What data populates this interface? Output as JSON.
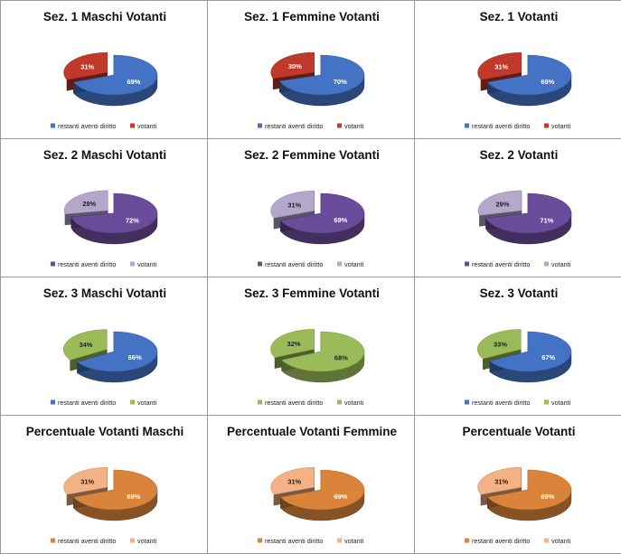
{
  "chart_data": [
    {
      "type": "pie",
      "title": "Sez. 1 Maschi Votanti",
      "categories": [
        "restanti aventi diritto",
        "votanti"
      ],
      "values": [
        69,
        31
      ],
      "labels": [
        "69%",
        "31%"
      ],
      "colors": [
        "#4472c4",
        "#c0392b"
      ],
      "legend": "bottom"
    },
    {
      "type": "pie",
      "title": "Sez. 1  Femmine Votanti",
      "categories": [
        "restanti aventi diritto",
        "votanti"
      ],
      "values": [
        70,
        30
      ],
      "labels": [
        "70%",
        "30%"
      ],
      "colors": [
        "#4472c4",
        "#c0392b"
      ],
      "legend": "bottom"
    },
    {
      "type": "pie",
      "title": "Sez. 1  Votanti",
      "categories": [
        "restanti aventi diritto",
        "votanti"
      ],
      "values": [
        69,
        31
      ],
      "labels": [
        "69%",
        "31%"
      ],
      "colors": [
        "#4472c4",
        "#c0392b"
      ],
      "legend": "bottom"
    },
    {
      "type": "pie",
      "title": "Sez. 2  Maschi Votanti",
      "categories": [
        "restanti aventi diritto",
        "votanti"
      ],
      "values": [
        72,
        28
      ],
      "labels": [
        "72%",
        "28%"
      ],
      "colors": [
        "#6b4c9a",
        "#b3a7cc"
      ],
      "legend": "bottom"
    },
    {
      "type": "pie",
      "title": "Sez. 2 Femmine Votanti",
      "categories": [
        "restanti aventi diritto",
        "votanti"
      ],
      "values": [
        69,
        31
      ],
      "labels": [
        "69%",
        "31%"
      ],
      "colors": [
        "#6b4c9a",
        "#b3a7cc"
      ],
      "legend": "bottom"
    },
    {
      "type": "pie",
      "title": "Sez. 2  Votanti",
      "categories": [
        "restanti aventi diritto",
        "votanti"
      ],
      "values": [
        71,
        29
      ],
      "labels": [
        "71%",
        "29%"
      ],
      "colors": [
        "#6b4c9a",
        "#b3a7cc"
      ],
      "legend": "bottom"
    },
    {
      "type": "pie",
      "title": "Sez. 3 Maschi Votanti",
      "categories": [
        "restanti aventi diritto",
        "votanti"
      ],
      "values": [
        66,
        34
      ],
      "labels": [
        "66%",
        "34%"
      ],
      "colors": [
        "#4472c4",
        "#9bbb59"
      ],
      "legend": "bottom"
    },
    {
      "type": "pie",
      "title": "Sez. 3  Femmine Votanti",
      "categories": [
        "restanti aventi diritto",
        "votanti"
      ],
      "values": [
        68,
        32
      ],
      "labels": [
        "68%",
        "32%"
      ],
      "colors": [
        "#9bbb59",
        "#9bbb59"
      ],
      "legend": "bottom"
    },
    {
      "type": "pie",
      "title": "Sez. 3  Votanti",
      "categories": [
        "restanti aventi diritto",
        "votanti"
      ],
      "values": [
        67,
        33
      ],
      "labels": [
        "67%",
        "33%"
      ],
      "colors": [
        "#4472c4",
        "#9bbb59"
      ],
      "legend": "bottom"
    },
    {
      "type": "pie",
      "title": "Percentuale  Votanti Maschi",
      "categories": [
        "restanti aventi diritto",
        "votanti"
      ],
      "values": [
        69,
        31
      ],
      "labels": [
        "69%",
        "31%"
      ],
      "colors": [
        "#d9843a",
        "#f4b183"
      ],
      "legend": "bottom"
    },
    {
      "type": "pie",
      "title": "Percentuale Votanti Femmine",
      "categories": [
        "restanti aventi diritto",
        "votanti"
      ],
      "values": [
        69,
        31
      ],
      "labels": [
        "69%",
        "31%"
      ],
      "colors": [
        "#d9843a",
        "#f4b183"
      ],
      "legend": "bottom"
    },
    {
      "type": "pie",
      "title": "Percentuale Votanti",
      "categories": [
        "restanti aventi diritto",
        "votanti"
      ],
      "values": [
        69,
        31
      ],
      "labels": [
        "69%",
        "31%"
      ],
      "colors": [
        "#d9843a",
        "#f4b183"
      ],
      "legend": "bottom"
    }
  ]
}
